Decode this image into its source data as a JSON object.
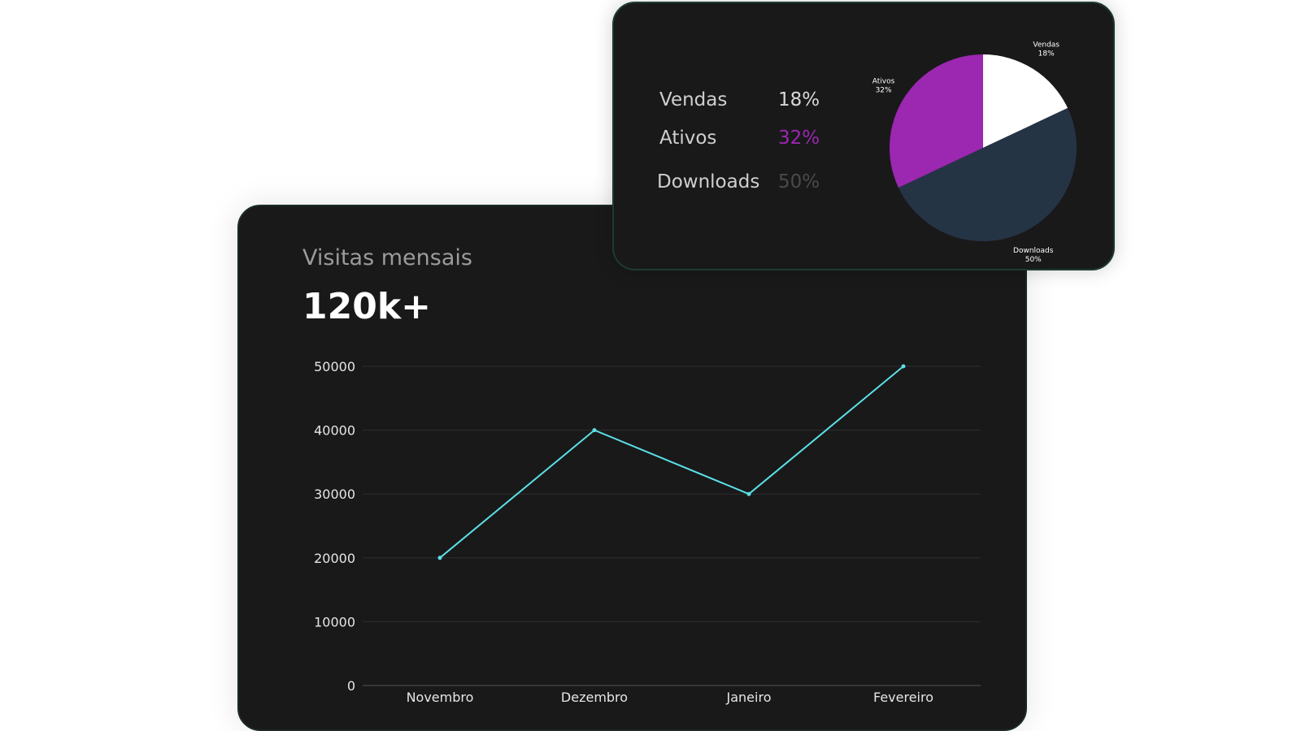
{
  "line_card": {
    "title": "Visitas mensais",
    "metric": "120k+"
  },
  "pie_card": {
    "legend": [
      {
        "label": "Vendas",
        "pct": "18%",
        "color": "#d8d8d8"
      },
      {
        "label": "Ativos",
        "pct": "32%",
        "color": "#9c27b0"
      },
      {
        "label": "Downloads",
        "pct": "50%",
        "color": "#4a4a4a"
      }
    ]
  },
  "chart_data": [
    {
      "type": "line",
      "categories": [
        "Novembro",
        "Dezembro",
        "Janeiro",
        "Fevereiro"
      ],
      "series": [
        {
          "values": [
            20000,
            40000,
            30000,
            50000
          ]
        }
      ],
      "yticks": [
        "0",
        "10000",
        "20000",
        "30000",
        "40000",
        "50000"
      ],
      "ylim": [
        0,
        50000
      ],
      "grid": true,
      "line_color": "#5ce0e6"
    },
    {
      "type": "pie",
      "categories": [
        "Vendas",
        "Ativos",
        "Downloads"
      ],
      "values": [
        18,
        32,
        50
      ],
      "labels": [
        "18%",
        "32%",
        "50%"
      ],
      "colors": [
        "#ffffff",
        "#9c27b0",
        "#253445"
      ]
    }
  ]
}
